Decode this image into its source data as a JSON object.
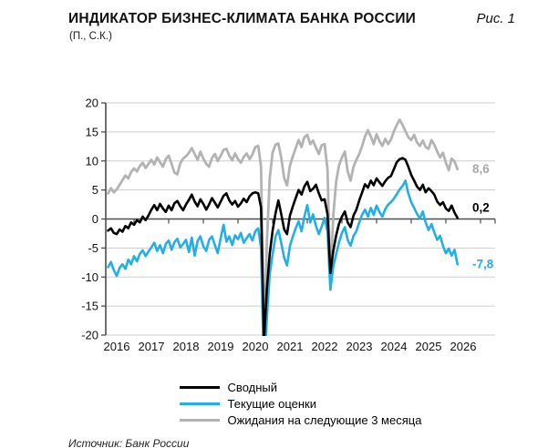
{
  "figure": {
    "title": "ИНДИКАТОР БИЗНЕС-КЛИМАТА БАНКА РОССИИ",
    "figure_label": "Рис. 1",
    "subtitle": "(П., С.К.)",
    "source": "Источник: Банк России"
  },
  "chart_data": {
    "type": "line",
    "title": "Индикатор бизнес-климата Банка России, пункты, сезонно скорректировано",
    "x_monthly_start": "2015-10",
    "x_monthly_end": "2025-11",
    "x_labels": [
      "2016",
      "2017",
      "2018",
      "2019",
      "2020",
      "2021",
      "2022",
      "2023",
      "2024",
      "2025",
      "2026"
    ],
    "y_ticks": [
      "20",
      "15",
      "10",
      "5",
      "0",
      "-5",
      "-10",
      "-15",
      "-20"
    ],
    "ylim": [
      -20,
      20
    ],
    "grid": true,
    "legend_position": "bottom",
    "colors": {
      "composite": "#000000",
      "current": "#24AFE4",
      "expectations": "#B3B3B3",
      "gridline": "#CDCDCD",
      "axis": "#4D4D4D",
      "expectations_label": "#A9A9A9"
    },
    "series": [
      {
        "name": "Сводный",
        "color_key": "composite",
        "end_label": "0,2",
        "end_value": 0.2,
        "values": [
          -2.0,
          -1.6,
          -2.4,
          -2.6,
          -1.8,
          -2.2,
          -1.2,
          -1.6,
          -0.6,
          -1.0,
          -0.2,
          -0.6,
          0.4,
          -0.2,
          0.6,
          1.6,
          2.4,
          1.5,
          2.6,
          1.8,
          1.2,
          2.3,
          1.5,
          2.7,
          3.1,
          2.2,
          1.5,
          2.5,
          3.3,
          4.2,
          3.0,
          2.2,
          3.4,
          2.6,
          1.6,
          2.5,
          3.6,
          2.8,
          2.0,
          3.0,
          4.0,
          4.4,
          3.2,
          2.5,
          3.1,
          2.1,
          2.7,
          3.5,
          2.9,
          3.9,
          4.4,
          4.6,
          4.4,
          2.0,
          -21.0,
          -12.0,
          -6.0,
          -2.0,
          1.0,
          3.2,
          0.8,
          -1.8,
          -2.6,
          0.6,
          2.2,
          3.6,
          5.0,
          4.2,
          5.6,
          6.4,
          4.8,
          5.2,
          5.9,
          4.4,
          3.2,
          3.4,
          0.8,
          -9.3,
          -5.5,
          -2.8,
          -0.8,
          0.4,
          1.3,
          -0.6,
          -1.4,
          0.6,
          1.6,
          3.2,
          4.6,
          6.0,
          5.4,
          6.6,
          5.8,
          7.0,
          6.3,
          5.7,
          6.5,
          7.1,
          7.4,
          8.6,
          9.8,
          10.3,
          10.5,
          10.2,
          9.0,
          7.6,
          6.6,
          5.6,
          5.0,
          5.9,
          4.6,
          5.3,
          4.8,
          4.2,
          3.0,
          2.4,
          2.9,
          1.8,
          1.4,
          2.3,
          1.1,
          0.2
        ]
      },
      {
        "name": "Текущие оценки",
        "color_key": "current",
        "end_label": "-7,8",
        "end_value": -7.8,
        "values": [
          -8.3,
          -7.4,
          -8.8,
          -9.8,
          -8.4,
          -7.8,
          -8.6,
          -7.0,
          -7.8,
          -6.4,
          -7.3,
          -6.0,
          -5.4,
          -6.4,
          -5.6,
          -4.9,
          -4.1,
          -5.5,
          -4.5,
          -5.9,
          -4.3,
          -3.7,
          -5.3,
          -4.0,
          -3.4,
          -4.9,
          -4.3,
          -3.6,
          -5.7,
          -3.2,
          -6.3,
          -3.8,
          -3.0,
          -4.7,
          -5.5,
          -3.6,
          -3.0,
          -4.5,
          -5.9,
          -3.3,
          -1.0,
          -3.9,
          -3.0,
          -4.5,
          -2.8,
          -3.5,
          -2.4,
          -4.1,
          -3.3,
          -2.6,
          -3.7,
          -2.1,
          -1.6,
          -5.0,
          -27.0,
          -17.0,
          -9.5,
          -6.0,
          -3.0,
          -1.9,
          -4.2,
          -6.7,
          -8.0,
          -4.6,
          -3.0,
          -1.6,
          -0.4,
          -2.1,
          0.4,
          2.4,
          -0.6,
          0.8,
          -1.2,
          -2.6,
          -1.3,
          0.2,
          -2.2,
          -12.2,
          -8.2,
          -6.0,
          -4.0,
          -2.4,
          -1.4,
          -3.6,
          -4.6,
          -2.9,
          -2.1,
          -0.6,
          0.8,
          1.6,
          0.4,
          1.9,
          0.7,
          2.3,
          1.2,
          0.4,
          1.7,
          2.5,
          2.9,
          3.5,
          4.3,
          5.1,
          5.7,
          6.6,
          4.4,
          2.9,
          1.9,
          0.9,
          0.1,
          1.3,
          -0.6,
          -1.9,
          -0.9,
          -2.3,
          -3.6,
          -2.9,
          -4.6,
          -5.9,
          -5.1,
          -6.3,
          -5.3,
          -7.8
        ]
      },
      {
        "name": "Ожидания на следующие 3 месяца",
        "color_key": "expectations",
        "end_label": "8,6",
        "end_value": 8.6,
        "values": [
          4.4,
          5.3,
          4.6,
          5.1,
          5.9,
          6.7,
          7.5,
          7.0,
          8.1,
          8.7,
          8.2,
          9.1,
          9.7,
          8.8,
          9.5,
          10.2,
          9.4,
          10.6,
          9.8,
          9.0,
          10.3,
          10.9,
          9.5,
          8.0,
          7.7,
          9.6,
          10.4,
          10.8,
          11.4,
          12.2,
          11.2,
          10.2,
          11.6,
          10.4,
          9.5,
          9.0,
          10.5,
          11.2,
          10.0,
          10.9,
          11.9,
          12.1,
          10.9,
          10.1,
          11.3,
          10.3,
          9.7,
          10.7,
          11.3,
          10.3,
          11.1,
          12.4,
          12.6,
          9.0,
          -21.0,
          -4.0,
          7.0,
          11.5,
          12.8,
          13.0,
          10.5,
          7.0,
          5.8,
          9.2,
          10.8,
          12.2,
          13.6,
          12.4,
          14.1,
          14.5,
          12.9,
          13.5,
          12.3,
          11.2,
          12.7,
          12.9,
          8.5,
          -11.0,
          0.5,
          6.5,
          9.2,
          10.6,
          11.6,
          8.2,
          6.6,
          9.0,
          10.2,
          11.2,
          12.6,
          14.2,
          15.3,
          14.2,
          12.9,
          14.6,
          13.4,
          12.6,
          13.8,
          12.9,
          13.7,
          15.1,
          16.2,
          17.1,
          16.2,
          15.1,
          14.1,
          13.6,
          14.5,
          13.2,
          12.6,
          13.5,
          12.4,
          12.1,
          13.6,
          12.8,
          11.6,
          10.6,
          11.4,
          9.7,
          8.4,
          10.4,
          9.9,
          8.6
        ]
      }
    ]
  }
}
